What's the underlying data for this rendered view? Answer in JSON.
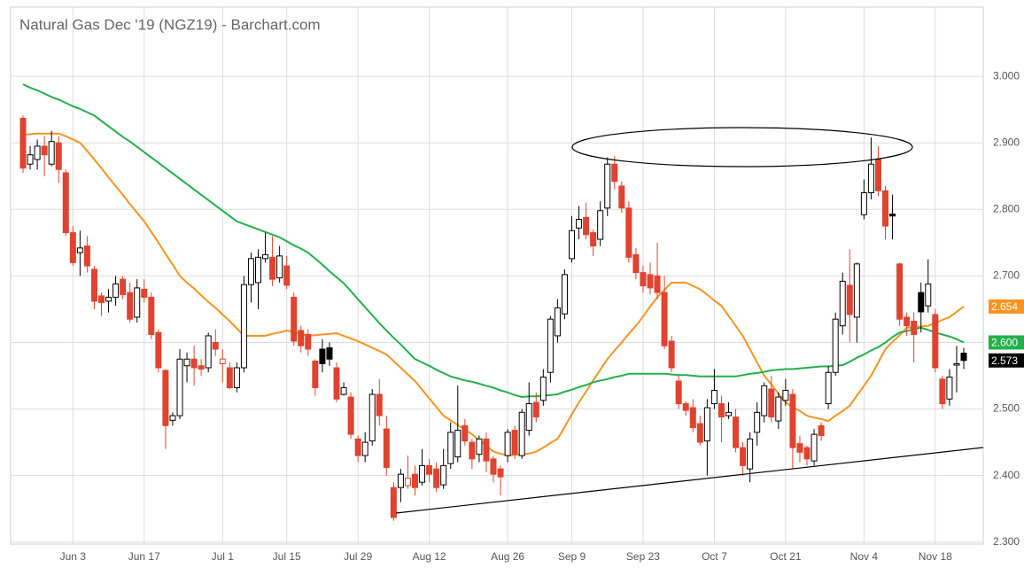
{
  "chart_data": {
    "type": "candlestick",
    "title": "Natural Gas Dec '19 (NGZ19) - Barchart.com",
    "categories": [
      null,
      null,
      null,
      null,
      null,
      null,
      null,
      "Jun 3",
      null,
      null,
      null,
      null,
      null,
      null,
      null,
      null,
      null,
      "Jun 17",
      null,
      null,
      null,
      null,
      null,
      null,
      null,
      null,
      null,
      null,
      "Jul 1",
      null,
      null,
      null,
      null,
      null,
      null,
      null,
      null,
      "Jul 15",
      null,
      null,
      null,
      null,
      null,
      null,
      null,
      null,
      null,
      "Jul 29",
      null,
      null,
      null,
      null,
      null,
      null,
      null,
      null,
      null,
      "Aug 12",
      null,
      null,
      null,
      null,
      null,
      null,
      null,
      null,
      null,
      null,
      "Aug 26",
      null,
      null,
      null,
      null,
      null,
      null,
      null,
      null,
      "Sep 9",
      null,
      null,
      null,
      null,
      null,
      null,
      null,
      null,
      null,
      "Sep 23",
      null,
      null,
      null,
      null,
      null,
      null,
      null,
      null,
      null,
      "Oct 7",
      null,
      null,
      null,
      null,
      null,
      null,
      null,
      null,
      null,
      "Oct 21",
      null,
      null,
      null,
      null,
      null,
      null,
      null,
      null,
      null,
      null,
      "Nov 4",
      null,
      null,
      null,
      null,
      null,
      null,
      null,
      null,
      null,
      "Nov 18",
      null,
      null,
      null,
      null
    ],
    "ohlc": [
      [
        2.937,
        2.941,
        2.855,
        2.862
      ],
      [
        2.868,
        2.895,
        2.86,
        2.882
      ],
      [
        2.875,
        2.905,
        2.86,
        2.895
      ],
      [
        2.895,
        2.91,
        2.85,
        2.882
      ],
      [
        2.868,
        2.918,
        2.865,
        2.902
      ],
      [
        2.9,
        2.91,
        2.84,
        2.86
      ],
      [
        2.855,
        2.86,
        2.76,
        2.765
      ],
      [
        2.765,
        2.775,
        2.715,
        2.72
      ],
      [
        2.735,
        2.768,
        2.7,
        2.742
      ],
      [
        2.745,
        2.76,
        2.705,
        2.715
      ],
      [
        2.71,
        2.715,
        2.65,
        2.662
      ],
      [
        2.67,
        2.675,
        2.64,
        2.66
      ],
      [
        2.662,
        2.68,
        2.645,
        2.668
      ],
      [
        2.668,
        2.7,
        2.655,
        2.688
      ],
      [
        2.695,
        2.7,
        2.665,
        2.672
      ],
      [
        2.675,
        2.69,
        2.63,
        2.635
      ],
      [
        2.638,
        2.695,
        2.63,
        2.682
      ],
      [
        2.68,
        2.695,
        2.66,
        2.668
      ],
      [
        2.668,
        2.675,
        2.605,
        2.612
      ],
      [
        2.615,
        2.62,
        2.555,
        2.562
      ],
      [
        2.558,
        2.56,
        2.44,
        2.475
      ],
      [
        2.483,
        2.495,
        2.475,
        2.49
      ],
      [
        2.49,
        2.59,
        2.485,
        2.575
      ],
      [
        2.565,
        2.585,
        2.54,
        2.575
      ],
      [
        2.575,
        2.595,
        2.535,
        2.562
      ],
      [
        2.565,
        2.575,
        2.55,
        2.56
      ],
      [
        2.562,
        2.615,
        2.555,
        2.61
      ],
      [
        2.6,
        2.62,
        2.58,
        2.59
      ],
      [
        2.568,
        2.59,
        2.54,
        2.575
      ],
      [
        2.562,
        2.57,
        2.53,
        2.532
      ],
      [
        2.532,
        2.57,
        2.525,
        2.562
      ],
      [
        2.562,
        2.7,
        2.555,
        2.687
      ],
      [
        2.687,
        2.735,
        2.66,
        2.726
      ],
      [
        2.69,
        2.74,
        2.65,
        2.728
      ],
      [
        2.726,
        2.765,
        2.72,
        2.732
      ],
      [
        2.728,
        2.76,
        2.685,
        2.695
      ],
      [
        2.697,
        2.745,
        2.69,
        2.73
      ],
      [
        2.715,
        2.73,
        2.68,
        2.686
      ],
      [
        2.668,
        2.675,
        2.595,
        2.602
      ],
      [
        2.618,
        2.625,
        2.585,
        2.595
      ],
      [
        2.612,
        2.62,
        2.58,
        2.59
      ],
      [
        2.572,
        2.575,
        2.52,
        2.532
      ],
      [
        2.59,
        2.605,
        2.555,
        2.568
      ],
      [
        2.592,
        2.6,
        2.565,
        2.575
      ],
      [
        2.562,
        2.57,
        2.51,
        2.515
      ],
      [
        2.522,
        2.54,
        2.52,
        2.532
      ],
      [
        2.518,
        2.525,
        2.455,
        2.462
      ],
      [
        2.455,
        2.46,
        2.42,
        2.43
      ],
      [
        2.43,
        2.465,
        2.42,
        2.45
      ],
      [
        2.452,
        2.53,
        2.445,
        2.522
      ],
      [
        2.522,
        2.545,
        2.475,
        2.49
      ],
      [
        2.47,
        2.49,
        2.4,
        2.412
      ],
      [
        2.382,
        2.39,
        2.332,
        2.337
      ],
      [
        2.382,
        2.41,
        2.36,
        2.402
      ],
      [
        2.385,
        2.43,
        2.38,
        2.396
      ],
      [
        2.402,
        2.415,
        2.37,
        2.382
      ],
      [
        2.39,
        2.44,
        2.385,
        2.415
      ],
      [
        2.415,
        2.425,
        2.39,
        2.402
      ],
      [
        2.41,
        2.42,
        2.375,
        2.382
      ],
      [
        2.386,
        2.44,
        2.38,
        2.415
      ],
      [
        2.418,
        2.48,
        2.41,
        2.465
      ],
      [
        2.428,
        2.535,
        2.42,
        2.468
      ],
      [
        2.475,
        2.485,
        2.445,
        2.452
      ],
      [
        2.45,
        2.455,
        2.41,
        2.425
      ],
      [
        2.432,
        2.46,
        2.42,
        2.455
      ],
      [
        2.455,
        2.465,
        2.405,
        2.422
      ],
      [
        2.425,
        2.43,
        2.39,
        2.402
      ],
      [
        2.41,
        2.415,
        2.37,
        2.398
      ],
      [
        2.43,
        2.47,
        2.42,
        2.465
      ],
      [
        2.468,
        2.475,
        2.425,
        2.432
      ],
      [
        2.43,
        2.5,
        2.425,
        2.495
      ],
      [
        2.468,
        2.54,
        2.46,
        2.508
      ],
      [
        2.51,
        2.525,
        2.48,
        2.488
      ],
      [
        2.513,
        2.56,
        2.505,
        2.548
      ],
      [
        2.555,
        2.64,
        2.54,
        2.635
      ],
      [
        2.61,
        2.665,
        2.6,
        2.652
      ],
      [
        2.643,
        2.71,
        2.635,
        2.702
      ],
      [
        2.726,
        2.79,
        2.72,
        2.768
      ],
      [
        2.772,
        2.805,
        2.755,
        2.785
      ],
      [
        2.788,
        2.81,
        2.755,
        2.762
      ],
      [
        2.765,
        2.77,
        2.73,
        2.745
      ],
      [
        2.755,
        2.812,
        2.745,
        2.798
      ],
      [
        2.802,
        2.878,
        2.79,
        2.868
      ],
      [
        2.868,
        2.88,
        2.83,
        2.842
      ],
      [
        2.835,
        2.842,
        2.795,
        2.802
      ],
      [
        2.802,
        2.812,
        2.72,
        2.728
      ],
      [
        2.732,
        2.742,
        2.695,
        2.705
      ],
      [
        2.705,
        2.715,
        2.675,
        2.685
      ],
      [
        2.702,
        2.72,
        2.672,
        2.682
      ],
      [
        2.7,
        2.75,
        2.665,
        2.675
      ],
      [
        2.675,
        2.7,
        2.59,
        2.595
      ],
      [
        2.602,
        2.61,
        2.555,
        2.562
      ],
      [
        2.542,
        2.55,
        2.5,
        2.508
      ],
      [
        2.508,
        2.512,
        2.49,
        2.498
      ],
      [
        2.502,
        2.515,
        2.465,
        2.472
      ],
      [
        2.478,
        2.49,
        2.445,
        2.45
      ],
      [
        2.452,
        2.515,
        2.4,
        2.502
      ],
      [
        2.508,
        2.56,
        2.5,
        2.528
      ],
      [
        2.508,
        2.52,
        2.45,
        2.488
      ],
      [
        2.49,
        2.51,
        2.485,
        2.495
      ],
      [
        2.488,
        2.5,
        2.435,
        2.442
      ],
      [
        2.442,
        2.45,
        2.4,
        2.415
      ],
      [
        2.41,
        2.465,
        2.39,
        2.455
      ],
      [
        2.465,
        2.51,
        2.445,
        2.495
      ],
      [
        2.49,
        2.54,
        2.48,
        2.535
      ],
      [
        2.53,
        2.55,
        2.48,
        2.488
      ],
      [
        2.482,
        2.525,
        2.47,
        2.518
      ],
      [
        2.513,
        2.545,
        2.505,
        2.528
      ],
      [
        2.522,
        2.53,
        2.41,
        2.442
      ],
      [
        2.448,
        2.46,
        2.42,
        2.435
      ],
      [
        2.442,
        2.445,
        2.415,
        2.425
      ],
      [
        2.422,
        2.47,
        2.415,
        2.462
      ],
      [
        2.475,
        2.48,
        2.452,
        2.46
      ],
      [
        2.508,
        2.565,
        2.5,
        2.555
      ],
      [
        2.555,
        2.645,
        2.55,
        2.635
      ],
      [
        2.625,
        2.705,
        2.612,
        2.692
      ],
      [
        2.686,
        2.74,
        2.6,
        2.642
      ],
      [
        2.638,
        2.72,
        2.6,
        2.718
      ],
      [
        2.792,
        2.845,
        2.785,
        2.825
      ],
      [
        2.825,
        2.908,
        2.815,
        2.868
      ],
      [
        2.875,
        2.895,
        2.82,
        2.828
      ],
      [
        2.828,
        2.835,
        2.755,
        2.775
      ],
      [
        2.793,
        2.822,
        2.755,
        2.79
      ],
      [
        2.718,
        2.72,
        2.625,
        2.635
      ],
      [
        2.638,
        2.645,
        2.61,
        2.625
      ],
      [
        2.632,
        2.645,
        2.57,
        2.612
      ],
      [
        2.675,
        2.69,
        2.615,
        2.646
      ],
      [
        2.655,
        2.725,
        2.645,
        2.688
      ],
      [
        2.642,
        2.65,
        2.555,
        2.562
      ],
      [
        2.545,
        2.55,
        2.5,
        2.508
      ],
      [
        2.515,
        2.56,
        2.505,
        2.548
      ],
      [
        2.566,
        2.595,
        2.525,
        2.568
      ],
      [
        2.584,
        2.592,
        2.56,
        2.573
      ]
    ],
    "up_color": "#000000",
    "down_color": "#e0432f",
    "series": [
      {
        "color": "#f7931e",
        "values": [
          2.912,
          2.913,
          2.914,
          2.914,
          2.914,
          2.914,
          2.91,
          2.905,
          2.9,
          2.888,
          2.875,
          2.862,
          2.848,
          2.835,
          2.822,
          2.808,
          2.795,
          2.782,
          2.766,
          2.75,
          2.733,
          2.717,
          2.7,
          2.69,
          2.681,
          2.671,
          2.661,
          2.652,
          2.642,
          2.632,
          2.621,
          2.61,
          2.61,
          2.61,
          2.61,
          2.613,
          2.615,
          2.618,
          2.616,
          2.613,
          2.61,
          2.611,
          2.612,
          2.613,
          2.614,
          2.61,
          2.606,
          2.602,
          2.597,
          2.592,
          2.587,
          2.582,
          2.572,
          2.562,
          2.552,
          2.542,
          2.529,
          2.516,
          2.503,
          2.49,
          2.483,
          2.476,
          2.469,
          2.462,
          2.453,
          2.445,
          2.436,
          2.433,
          2.43,
          2.431,
          2.432,
          2.433,
          2.436,
          2.442,
          2.449,
          2.455,
          2.473,
          2.492,
          2.51,
          2.526,
          2.543,
          2.559,
          2.575,
          2.588,
          2.6,
          2.613,
          2.625,
          2.639,
          2.654,
          2.668,
          2.679,
          2.69,
          2.69,
          2.69,
          2.685,
          2.68,
          2.672,
          2.663,
          2.655,
          2.64,
          2.625,
          2.61,
          2.59,
          2.57,
          2.55,
          2.537,
          2.523,
          2.51,
          2.503,
          2.497,
          2.49,
          2.487,
          2.485,
          2.482,
          2.49,
          2.497,
          2.505,
          2.52,
          2.535,
          2.55,
          2.57,
          2.59,
          2.601,
          2.611,
          2.622,
          2.623,
          2.624,
          2.625,
          2.629,
          2.634,
          2.638,
          2.646,
          2.654
        ]
      },
      {
        "color": "#22b04b",
        "values": [
          2.988,
          2.983,
          2.979,
          2.974,
          2.969,
          2.965,
          2.96,
          2.955,
          2.951,
          2.946,
          2.941,
          2.933,
          2.925,
          2.917,
          2.909,
          2.902,
          2.894,
          2.886,
          2.878,
          2.87,
          2.862,
          2.854,
          2.846,
          2.838,
          2.83,
          2.822,
          2.814,
          2.806,
          2.798,
          2.79,
          2.782,
          2.778,
          2.774,
          2.77,
          2.766,
          2.762,
          2.758,
          2.752,
          2.746,
          2.741,
          2.735,
          2.726,
          2.717,
          2.707,
          2.698,
          2.689,
          2.677,
          2.665,
          2.653,
          2.641,
          2.629,
          2.618,
          2.607,
          2.597,
          2.586,
          2.575,
          2.57,
          2.565,
          2.559,
          2.554,
          2.549,
          2.546,
          2.543,
          2.541,
          2.538,
          2.535,
          2.532,
          2.528,
          2.525,
          2.521,
          2.518,
          2.519,
          2.519,
          2.52,
          2.521,
          2.522,
          2.526,
          2.529,
          2.533,
          2.536,
          2.54,
          2.543,
          2.545,
          2.548,
          2.55,
          2.553,
          2.553,
          2.553,
          2.553,
          2.553,
          2.553,
          2.552,
          2.551,
          2.551,
          2.55,
          2.549,
          2.549,
          2.549,
          2.549,
          2.549,
          2.549,
          2.551,
          2.553,
          2.554,
          2.556,
          2.558,
          2.559,
          2.56,
          2.56,
          2.561,
          2.562,
          2.563,
          2.564,
          2.564,
          2.565,
          2.566,
          2.571,
          2.577,
          2.582,
          2.588,
          2.593,
          2.6,
          2.608,
          2.615,
          2.617,
          2.62,
          2.622,
          2.619,
          2.615,
          2.612,
          2.609,
          2.605,
          2.6
        ],
        "value_labels": [
          null,
          null,
          null,
          null,
          null,
          null,
          null,
          null,
          null,
          null,
          null,
          null,
          null,
          null,
          null,
          null,
          null,
          null,
          null,
          null,
          null,
          null,
          null,
          null,
          null,
          null,
          null,
          null,
          null,
          null,
          null,
          null,
          null,
          null,
          null,
          null,
          null,
          null,
          null,
          null,
          null,
          null,
          null,
          null,
          null,
          null,
          null,
          null,
          null,
          null,
          null,
          null,
          null,
          null,
          null,
          null,
          null,
          null,
          null,
          null,
          null,
          null,
          null,
          null,
          null,
          null,
          null,
          null,
          null,
          null,
          null,
          null,
          null,
          null,
          null,
          null,
          null,
          null,
          null,
          null,
          null,
          null,
          null,
          null,
          null,
          null,
          null,
          null,
          null,
          null,
          null,
          null,
          null,
          null,
          null,
          null,
          null,
          null,
          null,
          null,
          null,
          null,
          null,
          null,
          null,
          null,
          null,
          null,
          null,
          null,
          null,
          null,
          null,
          null,
          null,
          null,
          null,
          null,
          null,
          null,
          null,
          null,
          null,
          null,
          null,
          null,
          null,
          null,
          null,
          null,
          null,
          null,
          "2.600"
        ]
      }
    ],
    "ylim": [
      2.297,
      3.104
    ],
    "yticks": [
      {
        "value": 2.3,
        "label": "2.300"
      },
      {
        "value": 2.4,
        "label": "2.400"
      },
      {
        "value": 2.5,
        "label": "2.500"
      },
      {
        "value": 2.6,
        "label": "2.600"
      },
      {
        "value": 2.7,
        "label": "2.700"
      },
      {
        "value": 2.8,
        "label": "2.800"
      },
      {
        "value": 2.9,
        "label": "2.900"
      },
      {
        "value": 3.0,
        "label": "3.000"
      }
    ],
    "grid": true
  }
}
